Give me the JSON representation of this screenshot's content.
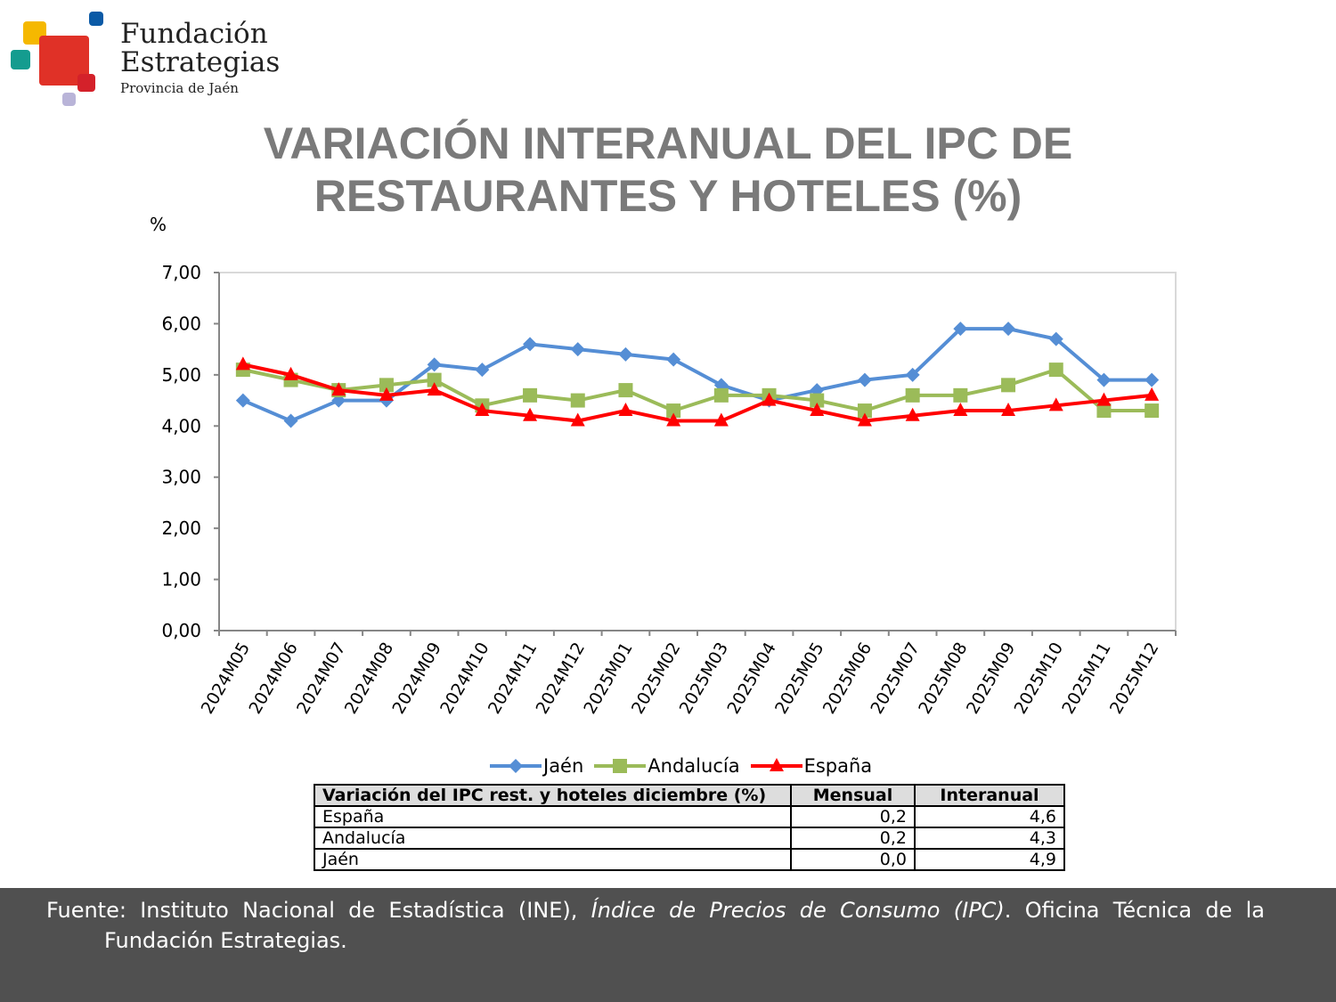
{
  "logo": {
    "line1": "Fundación",
    "line2": "Estrategias",
    "line3": "Provincia de Jaén"
  },
  "title_line1": "VARIACIÓN INTERANUAL DEL IPC DE",
  "title_line2": "RESTAURANTES Y HOTELES (%)",
  "chart_data": {
    "type": "line",
    "title": "VARIACIÓN INTERANUAL DEL IPC DE RESTAURANTES Y HOTELES (%)",
    "ylabel": "%",
    "ylim": [
      0,
      7
    ],
    "yticks": [
      "0,00",
      "1,00",
      "2,00",
      "3,00",
      "4,00",
      "5,00",
      "6,00",
      "7,00"
    ],
    "categories": [
      "2024M05",
      "2024M06",
      "2024M07",
      "2024M08",
      "2024M09",
      "2024M10",
      "2024M11",
      "2024M12",
      "2025M01",
      "2025M02",
      "2025M03",
      "2025M04",
      "2025M05",
      "2025M06",
      "2025M07",
      "2025M08",
      "2025M09",
      "2025M10",
      "2025M11",
      "2025M12"
    ],
    "series": [
      {
        "name": "Jaén",
        "color": "#558ed5",
        "marker": "diamond",
        "values": [
          4.5,
          4.1,
          4.5,
          4.5,
          5.2,
          5.1,
          5.6,
          5.5,
          5.4,
          5.3,
          4.8,
          4.5,
          4.7,
          4.9,
          5.0,
          5.9,
          5.9,
          5.7,
          4.9,
          4.9
        ]
      },
      {
        "name": "Andalucía",
        "color": "#9bbb59",
        "marker": "square",
        "values": [
          5.1,
          4.9,
          4.7,
          4.8,
          4.9,
          4.4,
          4.6,
          4.5,
          4.7,
          4.3,
          4.6,
          4.6,
          4.5,
          4.3,
          4.6,
          4.6,
          4.8,
          5.1,
          4.3,
          4.3
        ]
      },
      {
        "name": "España",
        "color": "#ff0000",
        "marker": "triangle",
        "values": [
          5.2,
          5.0,
          4.7,
          4.6,
          4.7,
          4.3,
          4.2,
          4.1,
          4.3,
          4.1,
          4.1,
          4.5,
          4.3,
          4.1,
          4.2,
          4.3,
          4.3,
          4.4,
          4.5,
          4.6
        ]
      }
    ],
    "grid": false,
    "legend": "bottom"
  },
  "table": {
    "headers": [
      "Variación del IPC rest. y hoteles diciembre (%)",
      "Mensual",
      "Interanual"
    ],
    "rows": [
      [
        "España",
        "0,2",
        "4,6"
      ],
      [
        "Andalucía",
        "0,2",
        "4,3"
      ],
      [
        "Jaén",
        "0,0",
        "4,9"
      ]
    ]
  },
  "footer": {
    "pre": "Fuente: Instituto Nacional de Estadística (INE), ",
    "italic": "Índice de Precios de Consumo (IPC)",
    "post": ". Oficina Técnica de la",
    "line2": "Fundación Estrategias."
  }
}
